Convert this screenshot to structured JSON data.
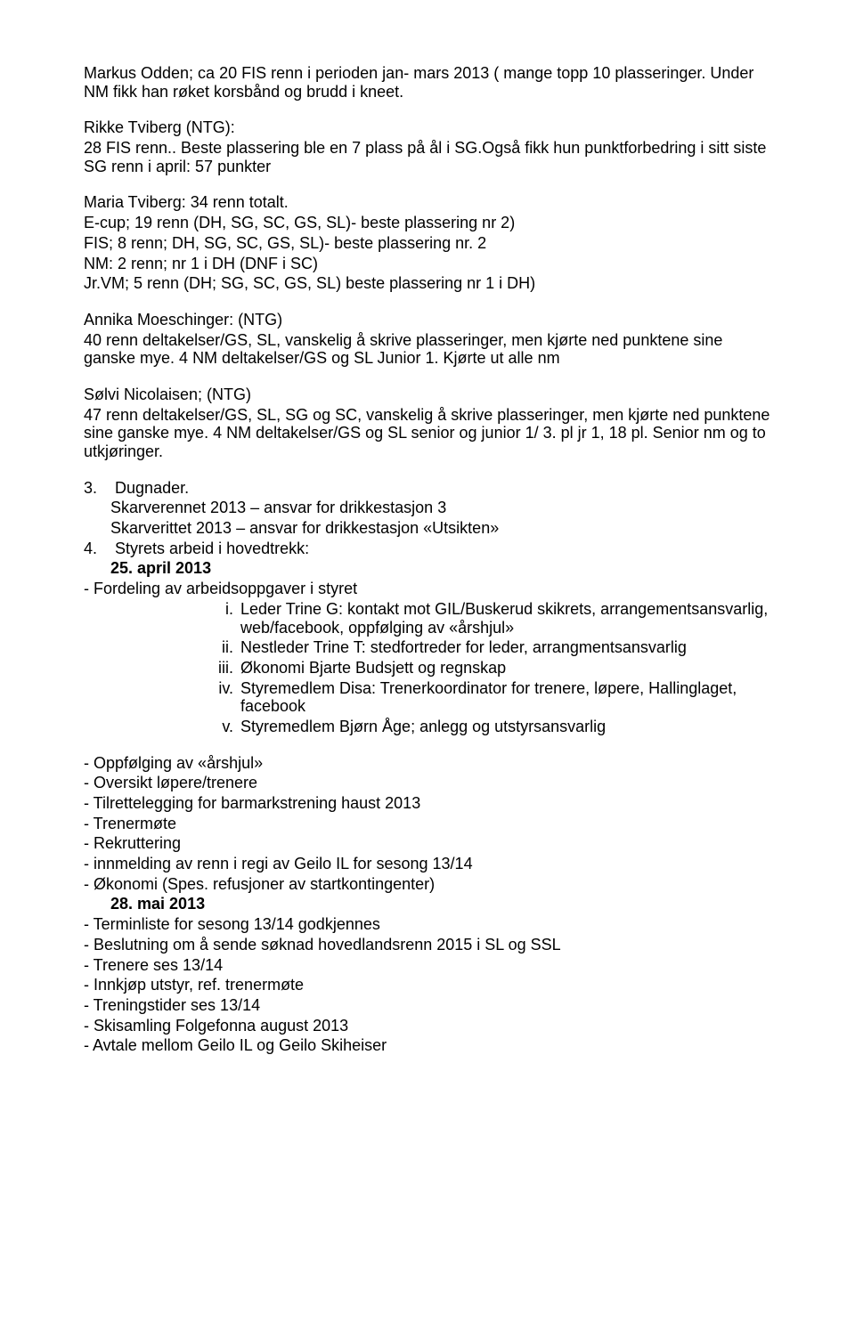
{
  "p1": "Markus Odden; ca 20 FIS renn i perioden jan- mars 2013 ( mange topp 10 plasseringer. Under NM fikk han røket korsbånd og brudd i kneet.",
  "p2": "Rikke Tviberg (NTG):",
  "p3_1": "28 FIS renn.. Beste plassering ble en 7 plass på ål i SG.Også fikk hun punktforbedring i sitt siste SG renn i april: 57 punkter",
  "p4": "Maria Tviberg: 34 renn totalt.",
  "p5": "E-cup; 19 renn (DH, SG, SC, GS, SL)- beste plassering nr 2)",
  "p6": "FIS; 8 renn; DH, SG, SC, GS, SL)- beste plassering nr. 2",
  "p7": "NM: 2 renn; nr 1 i DH (DNF i SC)",
  "p8": "Jr.VM; 5 renn (DH; SG, SC, GS, SL) beste plassering nr 1 i DH)",
  "p9": "Annika  Moeschinger: (NTG)",
  "p10": "40 renn deltakelser/GS, SL, vanskelig å skrive plasseringer, men kjørte ned punktene sine ganske mye. 4 NM deltakelser/GS og SL Junior 1. Kjørte ut alle nm",
  "p11": "Sølvi Nicolaisen; (NTG)",
  "p12": "47 renn deltakelser/GS, SL, SG og SC, vanskelig å skrive plasseringer, men kjørte ned punktene sine ganske mye. 4 NM deltakelser/GS og SL senior og junior 1/ 3. pl jr 1, 18 pl. Senior nm og to utkjøringer.",
  "n3": "3.",
  "n3_title": "Dugnader.",
  "n3_l1": "Skarverennet 2013 – ansvar for drikkestasjon 3",
  "n3_l2": "Skarverittet 2013 – ansvar for drikkestasjon «Utsikten»",
  "n4": "4.",
  "n4_title": "Styrets arbeid i hovedtrekk:",
  "date1": "25. april 2013",
  "s1": "- Fordeling av arbeidsoppgaver i styret",
  "r_i_n": "i.",
  "r_i": "Leder Trine G: kontakt mot GIL/Buskerud skikrets, arrangementsansvarlig, web/facebook, oppfølging av «årshjul»",
  "r_ii_n": "ii.",
  "r_ii": "Nestleder Trine T: stedfortreder for leder, arrangmentsansvarlig",
  "r_iii_n": "iii.",
  "r_iii": "Økonomi Bjarte Budsjett og regnskap",
  "r_iv_n": "iv.",
  "r_iv": "Styremedlem Disa: Trenerkoordinator for trenere, løpere, Hallinglaget, facebook",
  "r_v_n": "v.",
  "r_v": "Styremedlem Bjørn Åge; anlegg og utstyrsansvarlig",
  "b1": "- Oppfølging av «årshjul»",
  "b2": "- Oversikt løpere/trenere",
  "b3": "- Tilrettelegging for barmarkstrening haust 2013",
  "b4": "- Trenermøte",
  "b5": "- Rekruttering",
  "b6": "- innmelding av renn i regi av Geilo IL for sesong 13/14",
  "b7": "- Økonomi (Spes. refusjoner av startkontingenter)",
  "date2": "28. mai 2013",
  "c1": "- Terminliste for sesong 13/14 godkjennes",
  "c2": "- Beslutning om å sende søknad hovedlandsrenn 2015 i SL og SSL",
  "c3": "- Trenere ses 13/14",
  "c4": "- Innkjøp utstyr, ref. trenermøte",
  "c5": "- Treningstider ses 13/14",
  "c6": "- Skisamling Folgefonna august 2013",
  "c7": "- Avtale mellom Geilo IL og Geilo Skiheiser"
}
